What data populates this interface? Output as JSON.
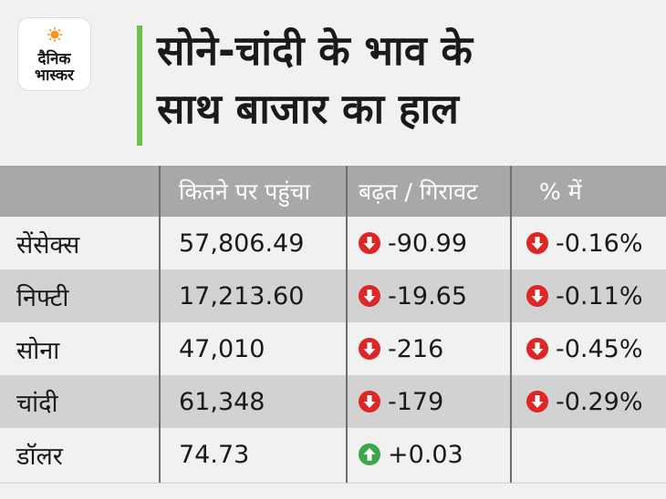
{
  "logo": {
    "line1": "दैनिक",
    "line2": "भास्कर",
    "sun_color": "#f7941d"
  },
  "title": {
    "line1": "सोने-चांदी के भाव के",
    "line2": "साथ बाजार का हाल",
    "accent_color": "#6cc04a"
  },
  "table": {
    "headers": [
      "",
      "कितने पर पहुंचा",
      "बढ़त / गिरावट",
      "% में"
    ],
    "rows": [
      {
        "name": "सेंसेक्स",
        "value": "57,806.49",
        "change": "-90.99",
        "change_dir": "down",
        "percent": "-0.16%",
        "percent_dir": "down"
      },
      {
        "name": "निफ्टी",
        "value": "17,213.60",
        "change": "-19.65",
        "change_dir": "down",
        "percent": "-0.11%",
        "percent_dir": "down"
      },
      {
        "name": "सोना",
        "value": "47,010",
        "change": "-216",
        "change_dir": "down",
        "percent": "-0.45%",
        "percent_dir": "down"
      },
      {
        "name": "चांदी",
        "value": "61,348",
        "change": "-179",
        "change_dir": "down",
        "percent": "-0.29%",
        "percent_dir": "down"
      },
      {
        "name": "डॉलर",
        "value": "74.73",
        "change": "+0.03",
        "change_dir": "up",
        "percent": "",
        "percent_dir": ""
      }
    ],
    "colors": {
      "down": "#e02525",
      "up": "#3aa848",
      "header_bg": "#a8a8a8",
      "shade_bg": "#d2d2d2"
    }
  }
}
